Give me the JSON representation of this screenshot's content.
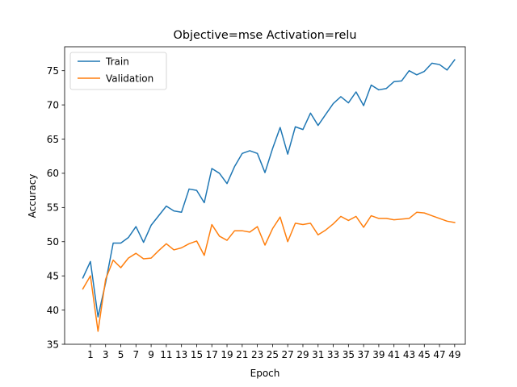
{
  "chart_data": {
    "type": "line",
    "title": "Objective=mse Activation=relu",
    "xlabel": "Epoch",
    "ylabel": "Accuracy",
    "xlim": [
      -2.4,
      50.4
    ],
    "ylim": [
      35,
      78.5
    ],
    "xticks": [
      1,
      3,
      5,
      7,
      9,
      11,
      13,
      15,
      17,
      19,
      21,
      23,
      25,
      27,
      29,
      31,
      33,
      35,
      37,
      39,
      41,
      43,
      45,
      47,
      49
    ],
    "yticks": [
      35,
      40,
      45,
      50,
      55,
      60,
      65,
      70,
      75
    ],
    "grid": false,
    "legend_position": "top-left",
    "x": [
      0,
      1,
      2,
      3,
      4,
      5,
      6,
      7,
      8,
      9,
      10,
      11,
      12,
      13,
      14,
      15,
      16,
      17,
      18,
      19,
      20,
      21,
      22,
      23,
      24,
      25,
      26,
      27,
      28,
      29,
      30,
      31,
      32,
      33,
      34,
      35,
      36,
      37,
      38,
      39,
      40,
      41,
      42,
      43,
      44,
      45,
      46,
      47,
      48,
      49
    ],
    "series": [
      {
        "name": "Train",
        "color": "#1f77b4",
        "values": [
          44.7,
          47.1,
          39.0,
          44.0,
          49.8,
          49.8,
          50.6,
          52.2,
          49.9,
          52.4,
          53.8,
          55.2,
          54.5,
          54.3,
          57.7,
          57.5,
          55.7,
          60.7,
          60.0,
          58.5,
          61.0,
          62.9,
          63.3,
          62.9,
          60.1,
          63.6,
          66.7,
          62.8,
          66.8,
          66.4,
          68.8,
          67.0,
          68.6,
          70.2,
          71.2,
          70.3,
          71.9,
          69.9,
          72.9,
          72.2,
          72.4,
          73.4,
          73.5,
          75.0,
          74.4,
          74.9,
          76.1,
          75.9,
          75.1,
          76.6
        ]
      },
      {
        "name": "Validation",
        "color": "#ff7f0e",
        "values": [
          43.1,
          45.0,
          36.9,
          44.5,
          47.3,
          46.2,
          47.6,
          48.3,
          47.5,
          47.6,
          48.7,
          49.7,
          48.8,
          49.1,
          49.7,
          50.1,
          48.0,
          52.5,
          50.8,
          50.2,
          51.6,
          51.6,
          51.4,
          52.2,
          49.5,
          51.9,
          53.6,
          50.0,
          52.7,
          52.5,
          52.7,
          51.0,
          51.7,
          52.6,
          53.7,
          53.1,
          53.7,
          52.1,
          53.8,
          53.4,
          53.4,
          53.2,
          53.3,
          53.4,
          54.3,
          54.2,
          53.8,
          53.4,
          53.0,
          52.8
        ]
      }
    ]
  }
}
